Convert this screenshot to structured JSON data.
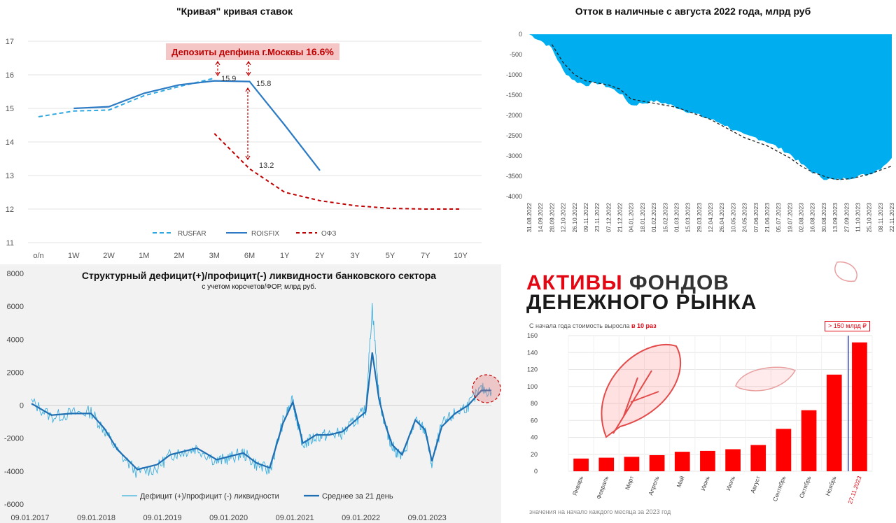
{
  "panel1": {
    "title": "\"Кривая\" кривая ставок",
    "callout_text": "Депозиты депфина г.Москвы ",
    "callout_value": "16.6%",
    "annotations": [
      "15.9",
      "15.8",
      "13.2"
    ]
  },
  "panel2": {
    "title": "Отток в наличные с августа 2022 года, млрд руб"
  },
  "panel3": {
    "title": "Структурный дефицит(+)/профицит(-) ликвидности банковского сектора",
    "subtitle": "с учетом корсчетов/ФОР, млрд руб."
  },
  "panel4": {
    "title_red": "АКТИВЫ",
    "title_rest": " ФОНДОВ",
    "title_line2": "ДЕНЕЖНОГО РЫНКА",
    "subtitle_text": "С начала года стоимость выросла ",
    "subtitle_bold": "в 10 раз",
    "badge": "> 150 млрд ₽",
    "footnote": "значения на начало каждого месяца за 2023 год"
  },
  "colors": {
    "rusfar": "#2ea8e0",
    "roisfix": "#2c7bc4",
    "ofz": "#c00000",
    "outflow": "#00aeef",
    "liquidity": "#39aee0",
    "liquidity_avg": "#1f6fb2",
    "funds": "#ff0000"
  },
  "chart_data": [
    {
      "type": "line",
      "categories": [
        "o/n",
        "1W",
        "2W",
        "1M",
        "2M",
        "3M",
        "6M",
        "1Y",
        "2Y",
        "3Y",
        "5Y",
        "7Y",
        "10Y"
      ],
      "ylim": [
        11,
        17
      ],
      "yticks": [
        11,
        12,
        13,
        14,
        15,
        16,
        17
      ],
      "series": [
        {
          "name": "RUSFAR",
          "values": [
            14.75,
            14.92,
            14.95,
            15.38,
            15.65,
            15.9,
            null,
            null,
            null,
            null,
            null,
            null,
            null
          ]
        },
        {
          "name": "ROISFIX",
          "values": [
            null,
            15.0,
            15.05,
            15.45,
            15.7,
            15.82,
            15.8,
            14.5,
            13.15,
            null,
            null,
            null,
            null
          ]
        },
        {
          "name": "ОФЗ",
          "values": [
            null,
            null,
            null,
            null,
            null,
            14.25,
            13.2,
            12.5,
            12.25,
            12.1,
            12.02,
            12.0,
            12.0
          ]
        }
      ]
    },
    {
      "type": "area",
      "ylim": [
        -4000,
        0
      ],
      "yticks": [
        0,
        -500,
        -1000,
        -1500,
        -2000,
        -2500,
        -3000,
        -3500,
        -4000
      ],
      "x": [
        "31.08.2022",
        "14.09.2022",
        "28.09.2022",
        "12.10.2022",
        "26.10.2022",
        "09.11.2022",
        "23.11.2022",
        "07.12.2022",
        "21.12.2022",
        "04.01.2023",
        "18.01.2023",
        "01.02.2023",
        "15.02.2023",
        "01.03.2023",
        "15.03.2023",
        "29.03.2023",
        "12.04.2023",
        "26.04.2023",
        "10.05.2023",
        "24.05.2023",
        "07.06.2023",
        "21.06.2023",
        "05.07.2023",
        "19.07.2023",
        "02.08.2023",
        "16.08.2023",
        "30.08.2023",
        "13.09.2023",
        "27.09.2023",
        "11.10.2023",
        "25.10.2023",
        "08.11.2023",
        "22.11.2023"
      ],
      "series": [
        {
          "name": "",
          "values": [
            0,
            -150,
            -350,
            -900,
            -1150,
            -1250,
            -1200,
            -1300,
            -1450,
            -1750,
            -1700,
            -1650,
            -1700,
            -1800,
            -1900,
            -2000,
            -2100,
            -2200,
            -2350,
            -2500,
            -2550,
            -2650,
            -2800,
            -2950,
            -3200,
            -3400,
            -3550,
            -3600,
            -3550,
            -3500,
            -3450,
            -3300,
            -3050
          ]
        },
        {
          "name": "",
          "values": [
            null,
            null,
            -250,
            -700,
            -1000,
            -1150,
            -1200,
            -1250,
            -1350,
            -1600,
            -1650,
            -1700,
            -1750,
            -1800,
            -1900,
            -2000,
            -2100,
            -2250,
            -2400,
            -2550,
            -2650,
            -2750,
            -2900,
            -3050,
            -3250,
            -3400,
            -3500,
            -3580,
            -3570,
            -3520,
            -3450,
            -3350,
            -3250
          ]
        }
      ]
    },
    {
      "type": "line",
      "ylim": [
        -6000,
        8000
      ],
      "yticks": [
        8000,
        6000,
        4000,
        2000,
        0,
        -2000,
        -4000,
        -6000
      ],
      "xticks": [
        "09.01.2017",
        "09.01.2018",
        "09.01.2019",
        "09.01.2020",
        "09.01.2021",
        "09.01.2022",
        "09.01.2023"
      ],
      "t": [
        2017.0,
        2017.3,
        2017.6,
        2017.9,
        2018.1,
        2018.3,
        2018.6,
        2018.9,
        2019.1,
        2019.3,
        2019.5,
        2019.8,
        2020.0,
        2020.2,
        2020.4,
        2020.6,
        2020.8,
        2020.95,
        2021.0,
        2021.1,
        2021.3,
        2021.5,
        2021.7,
        2021.9,
        2022.05,
        2022.15,
        2022.25,
        2022.35,
        2022.45,
        2022.6,
        2022.8,
        2022.95,
        2023.05,
        2023.2,
        2023.4,
        2023.6,
        2023.8,
        2023.95
      ],
      "series": [
        {
          "name": "Дефицит (+)/профицит (-) ликвидности",
          "values": [
            200,
            -700,
            -500,
            -400,
            -1500,
            -2800,
            -4100,
            -3800,
            -3000,
            -2800,
            -2600,
            -3400,
            -3200,
            -2900,
            -3600,
            -4000,
            -1000,
            300,
            -700,
            -2400,
            -1900,
            -1800,
            -1700,
            -900,
            -300,
            6000,
            500,
            -1300,
            -2500,
            -3200,
            -1000,
            -1500,
            -3600,
            -1200,
            -500,
            0,
            1000,
            800
          ]
        },
        {
          "name": "Среднее за 21 день",
          "values": [
            100,
            -600,
            -500,
            -500,
            -1400,
            -2700,
            -3900,
            -3600,
            -3000,
            -2800,
            -2600,
            -3300,
            -3100,
            -2900,
            -3500,
            -3800,
            -1100,
            200,
            -600,
            -2300,
            -1800,
            -1800,
            -1600,
            -900,
            -400,
            3200,
            400,
            -1200,
            -2400,
            -3000,
            -900,
            -1500,
            -3400,
            -1300,
            -500,
            0,
            900,
            900
          ]
        }
      ]
    },
    {
      "type": "bar",
      "categories": [
        "Январь",
        "Февраль",
        "Март",
        "Апрель",
        "Май",
        "Июнь",
        "Июль",
        "Август",
        "Сентябрь",
        "Октябрь",
        "Ноябрь",
        "27.11.2023"
      ],
      "ylim": [
        0,
        160
      ],
      "yticks": [
        0,
        20,
        40,
        60,
        80,
        100,
        120,
        140,
        160
      ],
      "values": [
        15,
        16,
        17,
        19,
        23,
        24,
        26,
        31,
        50,
        72,
        114,
        152
      ]
    }
  ]
}
